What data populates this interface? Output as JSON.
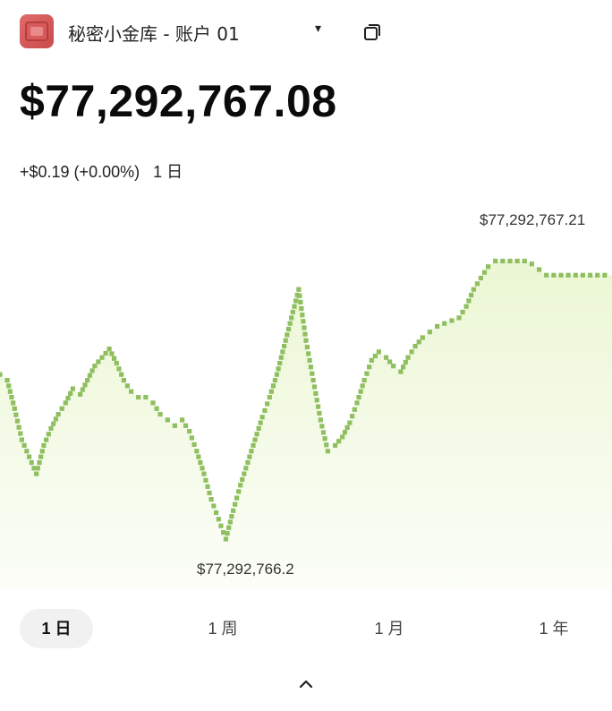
{
  "header": {
    "account_name": "秘密小金库 - 账户 01",
    "chevron_glyph": "▾",
    "icons": [
      "vault-avatar-icon",
      "chevron-down-icon",
      "copy-icon"
    ]
  },
  "balance": "$77,292,767.08",
  "change": {
    "amount": "+$0.19 (+0.00%)",
    "period": "1 日"
  },
  "chart_labels": {
    "high": "$77,292,767.21",
    "low": "$77,292,766.2"
  },
  "chart_data": {
    "type": "line",
    "style": "pixelated-dot",
    "series_color": "#8fbf5f",
    "fill_color": "#e9f6cf",
    "y_min": 77292766.2,
    "y_max": 77292767.21,
    "x": [
      0,
      1,
      2,
      3,
      4,
      5,
      6,
      7,
      8,
      9,
      10,
      11,
      12,
      13,
      14,
      15,
      16,
      17,
      18,
      19,
      20,
      21,
      22,
      23,
      24,
      25,
      26,
      27,
      28,
      29,
      30,
      31,
      32,
      33,
      34,
      35,
      36,
      37,
      38,
      39,
      40,
      41,
      42,
      43,
      44,
      45,
      46,
      47,
      48,
      49,
      50,
      51,
      52,
      53,
      54,
      55,
      56,
      57,
      58,
      59,
      60,
      61,
      62,
      63,
      64,
      65,
      66,
      67,
      68,
      69,
      70,
      71,
      72,
      73,
      74,
      75,
      76,
      77,
      78,
      79,
      80,
      81,
      82,
      83,
      84
    ],
    "y": [
      77292766.78,
      77292766.76,
      77292766.66,
      77292766.55,
      77292766.49,
      77292766.43,
      77292766.53,
      77292766.59,
      77292766.64,
      77292766.68,
      77292766.73,
      77292766.71,
      77292766.76,
      77292766.81,
      77292766.84,
      77292766.87,
      77292766.82,
      77292766.76,
      77292766.72,
      77292766.7,
      77292766.7,
      77292766.68,
      77292766.64,
      77292766.62,
      77292766.6,
      77292766.62,
      77292766.58,
      77292766.51,
      77292766.43,
      77292766.34,
      77292766.27,
      77292766.2,
      77292766.3,
      77292766.39,
      77292766.47,
      77292766.55,
      77292766.63,
      77292766.7,
      77292766.78,
      77292766.88,
      77292766.98,
      77292767.08,
      77292766.9,
      77292766.76,
      77292766.62,
      77292766.51,
      77292766.53,
      77292766.56,
      77292766.61,
      77292766.68,
      77292766.76,
      77292766.83,
      77292766.86,
      77292766.84,
      77292766.81,
      77292766.79,
      77292766.84,
      77292766.88,
      77292766.91,
      77292766.93,
      77292766.95,
      77292766.96,
      77292766.97,
      77292766.98,
      77292767.02,
      77292767.08,
      77292767.12,
      77292767.16,
      77292767.18,
      77292767.18,
      77292767.18,
      77292767.18,
      77292767.18,
      77292767.17,
      77292767.15,
      77292767.13,
      77292767.13,
      77292767.13,
      77292767.13,
      77292767.13,
      77292767.13,
      77292767.13,
      77292767.13,
      77292767.13,
      77292767.13
    ]
  },
  "ranges": [
    {
      "label": "1 日",
      "active": true
    },
    {
      "label": "1 周",
      "active": false
    },
    {
      "label": "1 月",
      "active": false
    },
    {
      "label": "1 年",
      "active": false
    }
  ],
  "footer": {
    "expand_icon": "chevron-up-icon"
  }
}
